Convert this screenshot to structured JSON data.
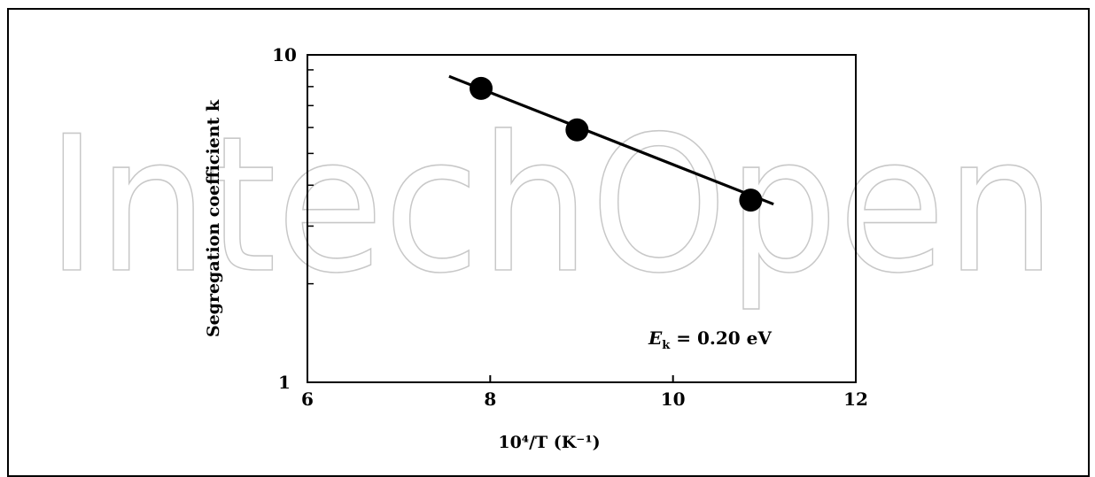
{
  "watermark": "IntechOpen",
  "chart_data": {
    "type": "scatter",
    "xlabel": "10⁴/T (K⁻¹)",
    "ylabel": "Segregation coefficient k",
    "x_scale": "linear",
    "y_scale": "log",
    "xlim": [
      6,
      12
    ],
    "ylim": [
      1,
      10
    ],
    "x_ticks": [
      6,
      8,
      10,
      12
    ],
    "y_tick_labels": [
      "1",
      "10"
    ],
    "series": [
      {
        "points": [
          {
            "x": 7.9,
            "y": 7.9
          },
          {
            "x": 8.95,
            "y": 5.9
          },
          {
            "x": 10.85,
            "y": 3.6
          }
        ]
      }
    ],
    "fit_line": {
      "x": [
        7.55,
        11.1
      ],
      "y": [
        8.6,
        3.5
      ]
    },
    "annotation": {
      "symbol": "E",
      "subscript": "k",
      "text": " = 0.20 eV"
    },
    "grid": false,
    "colors": {
      "marker": "#000000",
      "line": "#000000",
      "watermark": "#c8c8c8"
    }
  }
}
